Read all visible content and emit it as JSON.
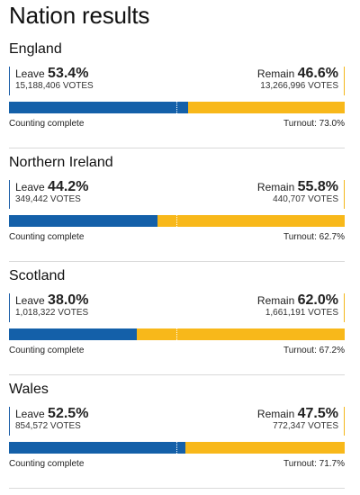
{
  "page_title": "Nation results",
  "colors": {
    "leave": "#1460a9",
    "remain": "#f8b81a"
  },
  "nations": [
    {
      "name": "England",
      "leave_label": "Leave",
      "leave_pct": "53.4%",
      "leave_votes": "15,188,406 VOTES",
      "remain_label": "Remain",
      "remain_pct": "46.6%",
      "remain_votes": "13,266,996 VOTES",
      "status": "Counting complete",
      "turnout": "Turnout: 73.0%",
      "leave_share": 53.4
    },
    {
      "name": "Northern Ireland",
      "leave_label": "Leave",
      "leave_pct": "44.2%",
      "leave_votes": "349,442 VOTES",
      "remain_label": "Remain",
      "remain_pct": "55.8%",
      "remain_votes": "440,707 VOTES",
      "status": "Counting complete",
      "turnout": "Turnout: 62.7%",
      "leave_share": 44.2
    },
    {
      "name": "Scotland",
      "leave_label": "Leave",
      "leave_pct": "38.0%",
      "leave_votes": "1,018,322 VOTES",
      "remain_label": "Remain",
      "remain_pct": "62.0%",
      "remain_votes": "1,661,191 VOTES",
      "status": "Counting complete",
      "turnout": "Turnout: 67.2%",
      "leave_share": 38.0
    },
    {
      "name": "Wales",
      "leave_label": "Leave",
      "leave_pct": "52.5%",
      "leave_votes": "854,572 VOTES",
      "remain_label": "Remain",
      "remain_pct": "47.5%",
      "remain_votes": "772,347 VOTES",
      "status": "Counting complete",
      "turnout": "Turnout: 71.7%",
      "leave_share": 52.5
    }
  ]
}
